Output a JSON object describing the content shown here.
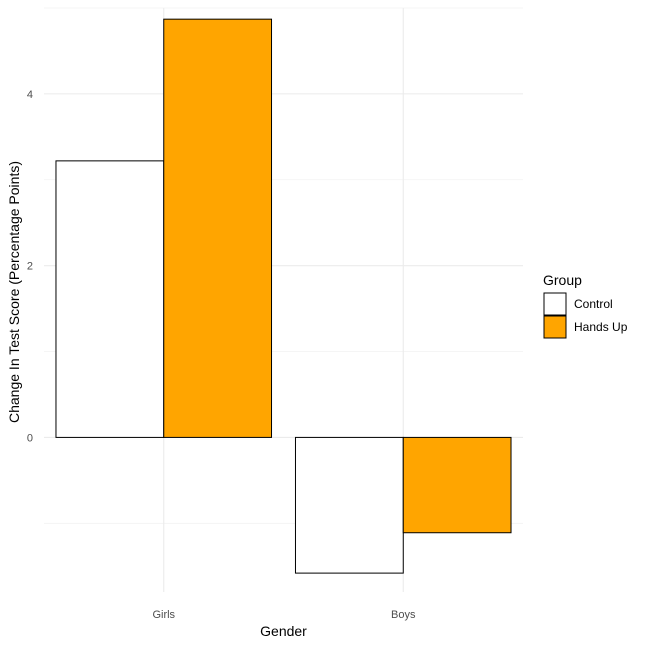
{
  "chart_data": {
    "type": "bar",
    "categories": [
      "Girls",
      "Boys"
    ],
    "series": [
      {
        "name": "Control",
        "values": [
          3.22,
          -1.58
        ],
        "color": "#ffffff"
      },
      {
        "name": "Hands Up",
        "values": [
          4.87,
          -1.11
        ],
        "color": "#FFA500"
      }
    ],
    "xlabel": "Gender",
    "ylabel": "Change In Test Score (Percentage Points)",
    "ylim": [
      -1.8,
      5.0
    ],
    "yticks": [
      0,
      2,
      4
    ],
    "grid": true,
    "legend": {
      "title": "Group",
      "placement": "right"
    }
  }
}
